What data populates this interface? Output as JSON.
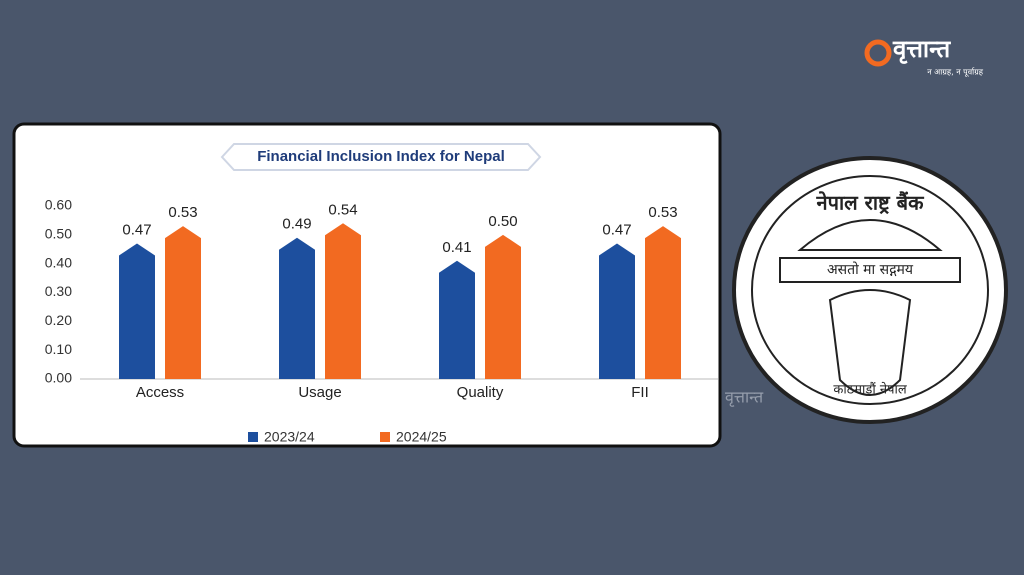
{
  "brand": {
    "name": "वृत्तान्त",
    "tagline": "न आग्रह, न पूर्वाग्रह"
  },
  "seal": {
    "top": "नेपाल राष्ट्र बैंक",
    "motto": "असतो मा सद्गमय",
    "bottom": "काठमाडौं नेपाल"
  },
  "chart_data": {
    "type": "bar",
    "title": "Financial Inclusion Index for Nepal",
    "categories": [
      "Access",
      "Usage",
      "Quality",
      "FII"
    ],
    "series": [
      {
        "name": "2023/24",
        "color": "#1d4f9e",
        "values": [
          0.47,
          0.49,
          0.41,
          0.47
        ]
      },
      {
        "name": "2024/25",
        "color": "#f26a21",
        "values": [
          0.53,
          0.54,
          0.5,
          0.53
        ],
        "value_labels": [
          "0.53",
          "0.54",
          "0.50",
          "0.53"
        ]
      }
    ],
    "ylim": [
      0,
      0.6
    ],
    "yticks": [
      {
        "value": 0,
        "label": "0.00"
      },
      {
        "value": 0.1,
        "label": "0.10"
      },
      {
        "value": 0.2,
        "label": "0.20"
      },
      {
        "value": 0.3,
        "label": "0.30"
      },
      {
        "value": 0.4,
        "label": "0.40"
      },
      {
        "value": 0.5,
        "label": "0.50"
      },
      {
        "value": 0.6,
        "label": "0.60"
      }
    ]
  }
}
